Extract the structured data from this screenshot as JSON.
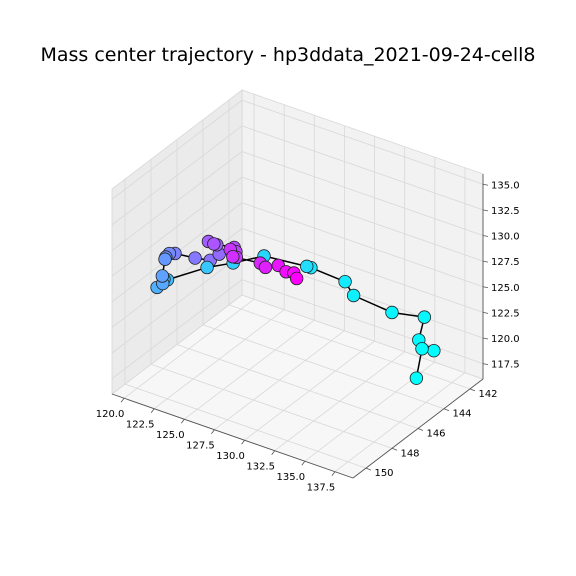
{
  "chart_data": {
    "type": "scatter",
    "subtype": "3d-trajectory",
    "title": "Mass center trajectory - hp3ddata_2021-09-24-cell8",
    "xlabel": "",
    "ylabel": "",
    "zlabel": "",
    "x_ticks": [
      "120.0",
      "122.5",
      "125.0",
      "127.5",
      "130.0",
      "132.5",
      "135.0",
      "137.5"
    ],
    "y_ticks": [
      "142",
      "144",
      "146",
      "148",
      "150"
    ],
    "z_ticks": [
      "117.5",
      "120.0",
      "122.5",
      "125.0",
      "127.5",
      "130.0",
      "132.5",
      "135.0"
    ],
    "xlim": [
      119.0,
      139.0
    ],
    "ylim": [
      141.0,
      151.0
    ],
    "zlim": [
      116.0,
      136.0
    ],
    "grid": true,
    "colormap": "cool",
    "colors": {
      "start": "#ff00ff",
      "end": "#00ffff",
      "path": "#000000",
      "pane": "#f2f2f2",
      "grid": "#d8d8d8"
    },
    "points": [
      {
        "x": 124.4,
        "y": 141.8,
        "z": 120.6,
        "t": 0.0
      },
      {
        "x": 124.6,
        "y": 142.2,
        "z": 121.6,
        "t": 0.03
      },
      {
        "x": 124.6,
        "y": 142.8,
        "z": 122.3,
        "t": 0.06
      },
      {
        "x": 124.6,
        "y": 143.4,
        "z": 123.5,
        "t": 0.09
      },
      {
        "x": 124.4,
        "y": 144.2,
        "z": 124.0,
        "t": 0.12
      },
      {
        "x": 124.4,
        "y": 144.6,
        "z": 124.8,
        "t": 0.15
      },
      {
        "x": 123.2,
        "y": 145.6,
        "z": 125.9,
        "t": 0.18
      },
      {
        "x": 123.2,
        "y": 145.8,
        "z": 126.8,
        "t": 0.21
      },
      {
        "x": 123.6,
        "y": 145.7,
        "z": 126.1,
        "t": 0.24
      },
      {
        "x": 124.0,
        "y": 146.1,
        "z": 127.2,
        "t": 0.27
      },
      {
        "x": 124.5,
        "y": 146.7,
        "z": 128.4,
        "t": 0.3
      },
      {
        "x": 124.0,
        "y": 147.8,
        "z": 129.6,
        "t": 0.33
      },
      {
        "x": 124.2,
        "y": 148.4,
        "z": 130.5,
        "t": 0.36
      },
      {
        "x": 125.0,
        "y": 148.5,
        "z": 130.6,
        "t": 0.39
      },
      {
        "x": 126.6,
        "y": 149.8,
        "z": 131.6,
        "t": 0.42
      },
      {
        "x": 126.4,
        "y": 150.3,
        "z": 131.4,
        "t": 0.45
      },
      {
        "x": 124.6,
        "y": 149.8,
        "z": 130.4,
        "t": 0.48
      },
      {
        "x": 122.5,
        "y": 149.4,
        "z": 129.6,
        "t": 0.51
      },
      {
        "x": 121.5,
        "y": 148.9,
        "z": 128.7,
        "t": 0.54
      },
      {
        "x": 119.8,
        "y": 147.6,
        "z": 126.4,
        "t": 0.57
      },
      {
        "x": 119.3,
        "y": 147.2,
        "z": 125.6,
        "t": 0.6
      },
      {
        "x": 119.4,
        "y": 147.5,
        "z": 124.3,
        "t": 0.63
      },
      {
        "x": 120.3,
        "y": 148.3,
        "z": 124.7,
        "t": 0.66
      },
      {
        "x": 120.8,
        "y": 149.2,
        "z": 125.4,
        "t": 0.69
      },
      {
        "x": 121.8,
        "y": 149.6,
        "z": 127.0,
        "t": 0.72
      },
      {
        "x": 122.2,
        "y": 149.7,
        "z": 127.2,
        "t": 0.75
      },
      {
        "x": 124.3,
        "y": 148.6,
        "z": 128.2,
        "t": 0.78
      },
      {
        "x": 125.6,
        "y": 147.8,
        "z": 128.4,
        "t": 0.81
      },
      {
        "x": 127.3,
        "y": 147.0,
        "z": 129.0,
        "t": 0.84
      },
      {
        "x": 130.2,
        "y": 146.4,
        "z": 128.6,
        "t": 0.87
      },
      {
        "x": 131.3,
        "y": 147.1,
        "z": 129.6,
        "t": 0.9
      },
      {
        "x": 132.3,
        "y": 145.4,
        "z": 127.0,
        "t": 0.92
      },
      {
        "x": 132.9,
        "y": 145.3,
        "z": 125.8,
        "t": 0.94
      },
      {
        "x": 134.9,
        "y": 144.2,
        "z": 123.9,
        "t": 0.96
      },
      {
        "x": 136.4,
        "y": 143.1,
        "z": 123.0,
        "t": 0.97
      },
      {
        "x": 136.8,
        "y": 143.9,
        "z": 121.7,
        "t": 0.98
      },
      {
        "x": 136.0,
        "y": 142.0,
        "z": 118.5,
        "t": 0.99
      },
      {
        "x": 134.8,
        "y": 141.8,
        "z": 118.0,
        "t": 0.995
      },
      {
        "x": 136.6,
        "y": 143.9,
        "z": 117.9,
        "t": 1.0
      }
    ]
  }
}
